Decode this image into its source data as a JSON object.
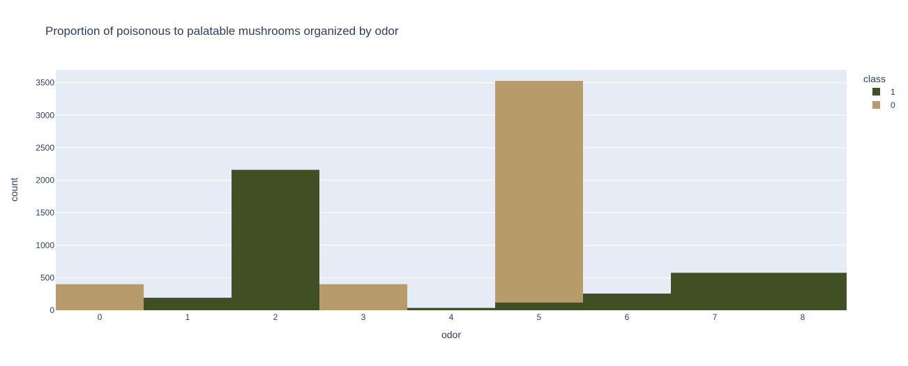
{
  "chart_data": {
    "type": "bar",
    "barmode": "stack",
    "title": "Proportion of poisonous to palatable mushrooms organized by odor",
    "xlabel": "odor",
    "ylabel": "count",
    "categories": [
      "0",
      "1",
      "2",
      "3",
      "4",
      "5",
      "6",
      "7",
      "8"
    ],
    "ylim": [
      0,
      3700
    ],
    "yticks": [
      0,
      500,
      1000,
      1500,
      2000,
      2500,
      3000,
      3500
    ],
    "grid": true,
    "legend": {
      "title": "class",
      "position": "top-right"
    },
    "plot_background": "#e5ecf6",
    "series": [
      {
        "name": "1",
        "color": "#414f24",
        "values": [
          0,
          192,
          2160,
          0,
          36,
          120,
          256,
          576,
          576
        ]
      },
      {
        "name": "0",
        "color": "#b89b6a",
        "values": [
          400,
          0,
          0,
          400,
          0,
          3408,
          0,
          0,
          0
        ]
      }
    ]
  }
}
